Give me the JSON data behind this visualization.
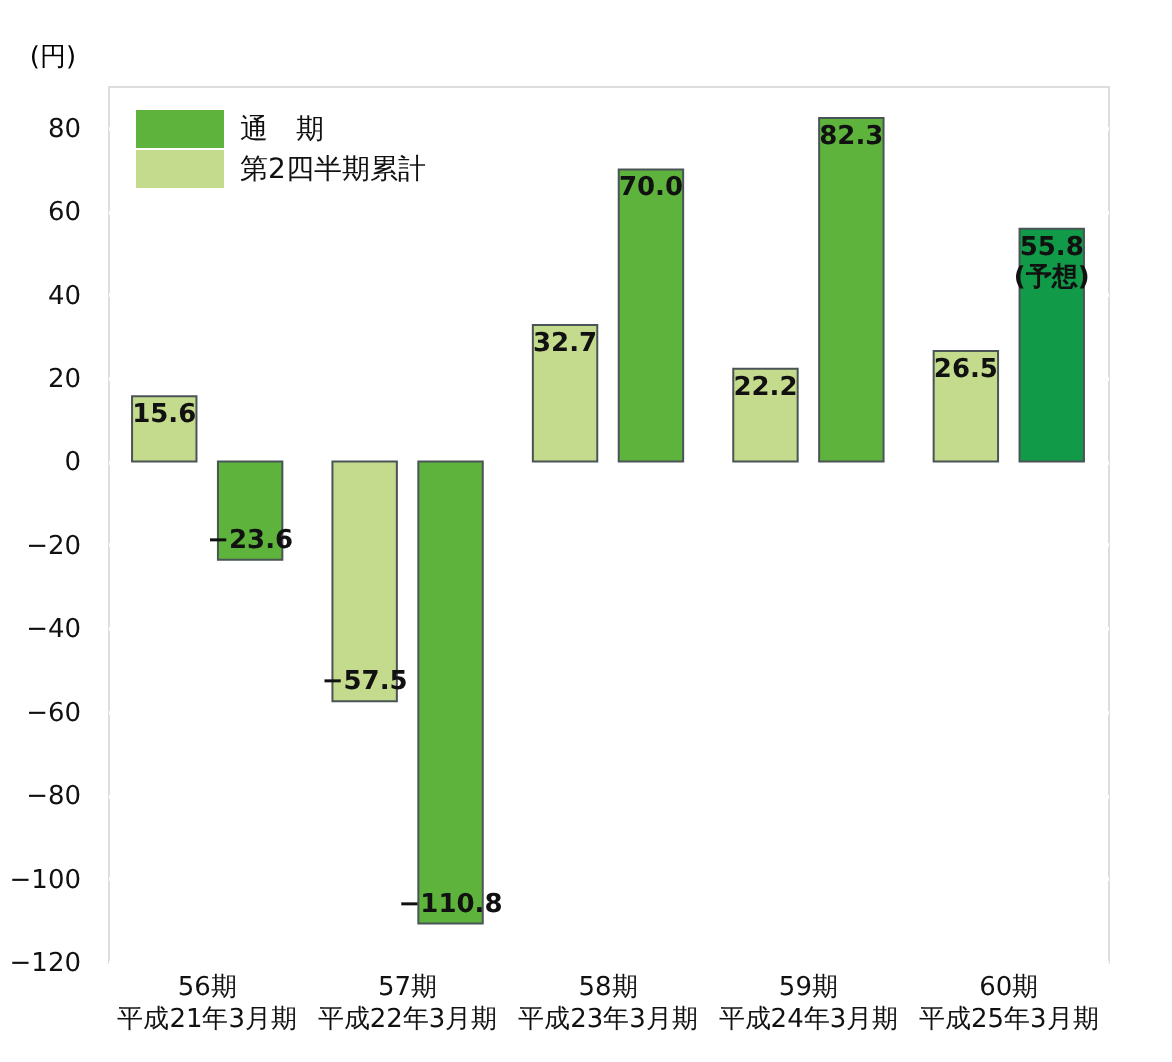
{
  "chart_data": {
    "type": "bar",
    "ylabel": "(円)",
    "categories": [
      "56期平成21年3月期",
      "57期平成22年3月期",
      "58期平成23年3月期",
      "59期平成24年3月期",
      "60期平成25年3月期"
    ],
    "series": [
      {
        "name": "第2四半期累計",
        "color": "#c4da8c",
        "values": [
          15.6,
          -57.5,
          32.7,
          22.2,
          26.5
        ],
        "value_labels": [
          "15.6",
          "−57.5",
          "32.7",
          "22.2",
          "26.5"
        ]
      },
      {
        "name": "通　期",
        "color": "#5db33c",
        "colors": [
          "#5db33c",
          "#5db33c",
          "#5db33c",
          "#5db33c",
          "#119a48"
        ],
        "values": [
          -23.6,
          -110.8,
          70.0,
          82.3,
          55.8
        ],
        "value_labels": [
          "−23.6",
          "−110.8",
          "70.0",
          "82.3",
          "55.8\n(予想)"
        ]
      }
    ],
    "ylim": [
      -120,
      90
    ],
    "yticks": [
      {
        "value": -120,
        "label": "−120"
      },
      {
        "value": -100,
        "label": "−100"
      },
      {
        "value": -80,
        "label": "−80"
      },
      {
        "value": -60,
        "label": "−60"
      },
      {
        "value": -40,
        "label": "−40"
      },
      {
        "value": -20,
        "label": "−20"
      },
      0,
      20,
      40,
      60,
      80
    ],
    "grid": "y",
    "legend": "top left"
  }
}
